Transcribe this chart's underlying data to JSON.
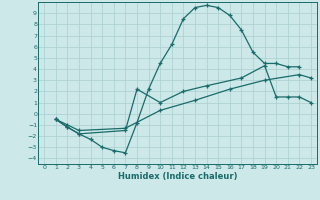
{
  "xlabel": "Humidex (Indice chaleur)",
  "bg_color": "#cce8e8",
  "grid_color": "#aacece",
  "line_color": "#1a6b6b",
  "marker": "+",
  "xlim": [
    -0.5,
    23.5
  ],
  "ylim": [
    -4.5,
    10.0
  ],
  "xticks": [
    0,
    1,
    2,
    3,
    4,
    5,
    6,
    7,
    8,
    9,
    10,
    11,
    12,
    13,
    14,
    15,
    16,
    17,
    18,
    19,
    20,
    21,
    22,
    23
  ],
  "yticks": [
    -4,
    -3,
    -2,
    -1,
    0,
    1,
    2,
    3,
    4,
    5,
    6,
    7,
    8,
    9
  ],
  "lines": [
    {
      "x": [
        1,
        2,
        3,
        4,
        5,
        6,
        7,
        8,
        9,
        10,
        11,
        12,
        13,
        14,
        15,
        16,
        17,
        18,
        19,
        20,
        21,
        22
      ],
      "y": [
        -0.5,
        -1.2,
        -1.8,
        -2.3,
        -3.0,
        -3.3,
        -3.5,
        -0.8,
        2.2,
        4.5,
        6.2,
        8.5,
        9.5,
        9.7,
        9.5,
        8.8,
        7.5,
        5.5,
        4.5,
        4.5,
        4.2,
        4.2
      ]
    },
    {
      "x": [
        1,
        2,
        3,
        7,
        8,
        10,
        12,
        14,
        17,
        19,
        20,
        21,
        22,
        23
      ],
      "y": [
        -0.5,
        -1.2,
        -1.8,
        -1.5,
        2.2,
        1.0,
        2.0,
        2.5,
        3.2,
        4.3,
        1.5,
        1.5,
        1.5,
        1.0
      ]
    },
    {
      "x": [
        1,
        2,
        3,
        7,
        10,
        13,
        16,
        19,
        22,
        23
      ],
      "y": [
        -0.5,
        -1.0,
        -1.5,
        -1.3,
        0.3,
        1.2,
        2.2,
        3.0,
        3.5,
        3.2
      ]
    }
  ]
}
